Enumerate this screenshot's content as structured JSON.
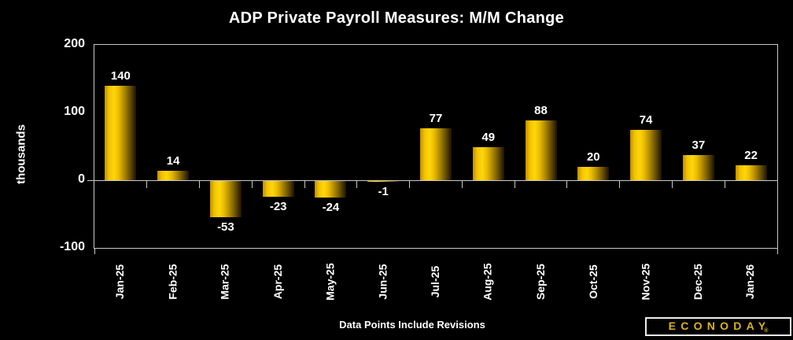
{
  "title": "ADP Private Payroll Measures: M/M Change",
  "footer_note": "Data Points Include Revisions",
  "logo": {
    "text": "ECONODAY",
    "reg_mark": "®"
  },
  "colors": {
    "background": "#000000",
    "bar_gold_bright": "#ffd60e",
    "bar_gold_dark": "#2a2000",
    "axis_line": "#c8c8c8",
    "text": "#ffffff",
    "logo_gold": "#dcb11f"
  },
  "chart_data": {
    "type": "bar",
    "categories": [
      "Jan-25",
      "Feb-25",
      "Mar-25",
      "Apr-25",
      "May-25",
      "Jun-25",
      "Jul-25",
      "Aug-25",
      "Sep-25",
      "Oct-25",
      "Nov-25",
      "Dec-25",
      "Jan-26"
    ],
    "values": [
      140,
      14,
      -53,
      -23,
      -24,
      -1,
      77,
      49,
      88,
      20,
      74,
      37,
      22
    ],
    "title": "ADP Private Payroll Measures: M/M Change",
    "xlabel": "",
    "ylabel": "thousands",
    "ylim": [
      -100,
      200
    ],
    "yticks": [
      200,
      100,
      0,
      -100
    ],
    "grid": false,
    "legend": null,
    "bar_labels_shown": true
  }
}
